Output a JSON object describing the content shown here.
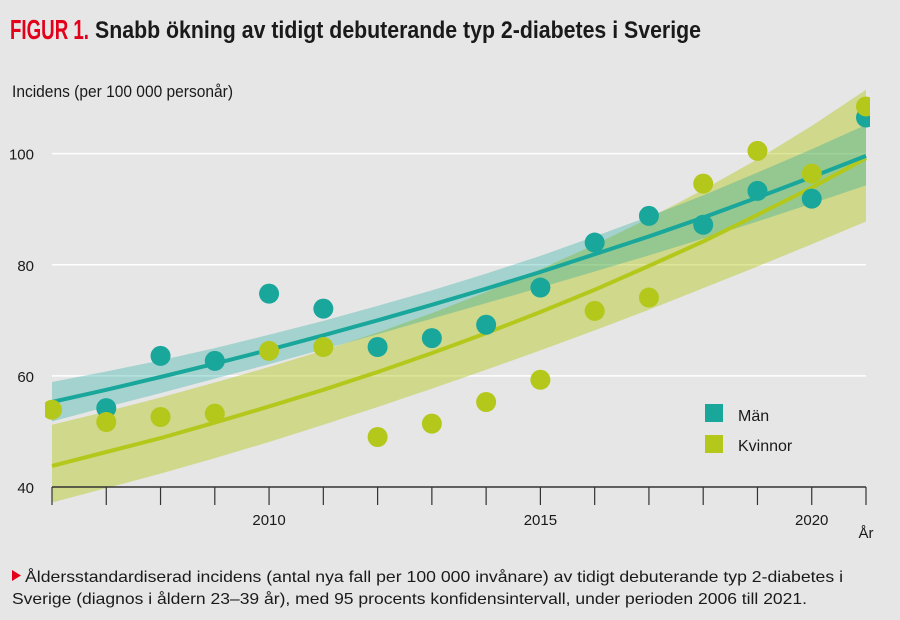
{
  "colors": {
    "background": "#e6e6e6",
    "accent": "#e2001a",
    "text": "#1a1a1a",
    "grid": "#ffffff",
    "axis": "#333333"
  },
  "caption": {
    "marker_icon": "triangle-right-icon",
    "line1": "Åldersstandardiserad incidens (antal nya fall per 100 000 invånare) av tidigt debuterande typ 2-diabetes i",
    "line2": "Sverige (diagnos i åldern 23–39 år), med 95 procents konfidensintervall, under perioden 2006 till 2021."
  },
  "chart_data": {
    "type": "scatter",
    "figure_label": "FIGUR 1.",
    "title": "Snabb ökning av tidigt debuterande typ 2-diabetes i Sverige",
    "ylabel": "Incidens (per 100 000 personår)",
    "xlabel": "År",
    "x": [
      2006,
      2007,
      2008,
      2009,
      2010,
      2011,
      2012,
      2013,
      2014,
      2015,
      2016,
      2017,
      2018,
      2019,
      2020,
      2021
    ],
    "x_tick_labels": [
      2010,
      2015,
      2020
    ],
    "y_ticks": [
      40,
      60,
      80,
      100
    ],
    "xlim": [
      2006,
      2021
    ],
    "ylim": [
      40,
      112
    ],
    "grid": true,
    "legend": "right",
    "series": [
      {
        "name": "Män",
        "color": "#19a79b",
        "values": [
          null,
          54.2,
          63.6,
          62.7,
          74.8,
          72.1,
          65.2,
          66.8,
          69.2,
          75.9,
          84.0,
          88.8,
          87.2,
          93.3,
          91.9,
          106.5
        ],
        "fit": [
          55.3,
          57.5,
          59.8,
          62.2,
          64.7,
          67.3,
          70.0,
          72.8,
          75.7,
          78.7,
          81.9,
          85.1,
          88.5,
          92.1,
          95.8,
          99.6
        ],
        "ci_lower": [
          51.8,
          54.4,
          56.9,
          59.5,
          62.1,
          64.8,
          67.5,
          70.3,
          73.1,
          75.9,
          78.8,
          81.7,
          84.7,
          87.8,
          91.0,
          94.3
        ],
        "ci_upper": [
          58.9,
          60.8,
          62.8,
          65.0,
          67.4,
          69.9,
          72.6,
          75.4,
          78.4,
          81.6,
          85.1,
          88.7,
          92.5,
          96.6,
          100.8,
          105.2
        ]
      },
      {
        "name": "Kvinnor",
        "color": "#b4c81c",
        "values": [
          53.9,
          51.7,
          52.6,
          53.2,
          64.5,
          65.2,
          49.0,
          51.4,
          55.3,
          59.3,
          71.7,
          74.1,
          94.6,
          100.5,
          96.4,
          108.5
        ],
        "fit": [
          43.8,
          46.3,
          48.8,
          51.6,
          54.5,
          57.5,
          60.7,
          64.1,
          67.7,
          71.5,
          75.5,
          79.8,
          84.2,
          89.0,
          93.9,
          99.2
        ],
        "ci_lower": [
          37.2,
          39.8,
          42.4,
          45.2,
          48.1,
          51.2,
          54.4,
          57.7,
          61.1,
          64.6,
          68.2,
          71.9,
          75.8,
          79.7,
          83.7,
          87.8
        ],
        "ci_upper": [
          51.2,
          53.6,
          56.1,
          58.8,
          61.6,
          64.6,
          67.8,
          71.3,
          75.1,
          79.2,
          83.6,
          88.4,
          93.5,
          99.0,
          105.0,
          111.5
        ]
      }
    ]
  }
}
